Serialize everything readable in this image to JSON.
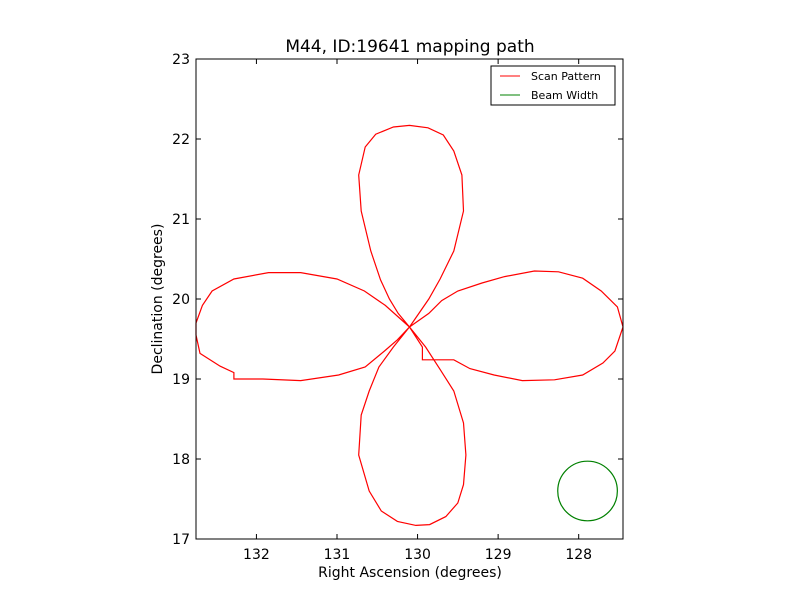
{
  "chart_data": {
    "type": "line",
    "title": "M44, ID:19641 mapping path",
    "xlabel": "Right Ascension (degrees)",
    "ylabel": "Declination (degrees)",
    "xlim": [
      132.75,
      127.45
    ],
    "ylim": [
      17,
      23
    ],
    "x_inverted": true,
    "xticks": [
      132,
      131,
      130,
      129,
      128
    ],
    "xtick_labels": [
      "132",
      "131",
      "130",
      "129",
      "128"
    ],
    "yticks": [
      17,
      18,
      19,
      20,
      21,
      22,
      23
    ],
    "ytick_labels": [
      "17",
      "18",
      "19",
      "20",
      "21",
      "22",
      "23"
    ],
    "grid": false,
    "legend_position": "top-right",
    "series": [
      {
        "name": "Scan Pattern",
        "color": "#ff0000",
        "points": [
          [
            130.1,
            19.65
          ],
          [
            130.24,
            19.82
          ],
          [
            130.35,
            20.0
          ],
          [
            130.46,
            20.24
          ],
          [
            130.58,
            20.6
          ],
          [
            130.7,
            21.1
          ],
          [
            130.73,
            21.55
          ],
          [
            130.65,
            21.9
          ],
          [
            130.52,
            22.06
          ],
          [
            130.3,
            22.15
          ],
          [
            130.1,
            22.17
          ],
          [
            129.87,
            22.14
          ],
          [
            129.68,
            22.05
          ],
          [
            129.55,
            21.85
          ],
          [
            129.45,
            21.55
          ],
          [
            129.43,
            21.1
          ],
          [
            129.55,
            20.6
          ],
          [
            129.72,
            20.25
          ],
          [
            129.86,
            20.0
          ],
          [
            130.1,
            19.65
          ],
          [
            129.86,
            19.82
          ],
          [
            129.7,
            19.98
          ],
          [
            129.5,
            20.1
          ],
          [
            129.2,
            20.2
          ],
          [
            128.92,
            20.28
          ],
          [
            128.55,
            20.35
          ],
          [
            128.25,
            20.34
          ],
          [
            127.95,
            20.26
          ],
          [
            127.72,
            20.1
          ],
          [
            127.52,
            19.9
          ],
          [
            127.45,
            19.65
          ],
          [
            127.55,
            19.35
          ],
          [
            127.7,
            19.2
          ],
          [
            127.95,
            19.05
          ],
          [
            128.3,
            18.99
          ],
          [
            128.7,
            18.98
          ],
          [
            129.05,
            19.05
          ],
          [
            129.35,
            19.13
          ],
          [
            129.55,
            19.24
          ],
          [
            129.94,
            19.24
          ],
          [
            129.94,
            19.4
          ],
          [
            130.1,
            19.65
          ],
          [
            130.25,
            19.49
          ],
          [
            130.41,
            19.35
          ],
          [
            130.65,
            19.15
          ],
          [
            130.98,
            19.05
          ],
          [
            131.45,
            18.98
          ],
          [
            131.92,
            19.0
          ],
          [
            132.28,
            19.0
          ],
          [
            132.28,
            19.08
          ],
          [
            132.45,
            19.16
          ],
          [
            132.7,
            19.32
          ],
          [
            132.75,
            19.55
          ],
          [
            132.75,
            19.7
          ],
          [
            132.67,
            19.92
          ],
          [
            132.55,
            20.1
          ],
          [
            132.28,
            20.25
          ],
          [
            131.85,
            20.33
          ],
          [
            131.45,
            20.33
          ],
          [
            131.0,
            20.25
          ],
          [
            130.66,
            20.1
          ],
          [
            130.4,
            19.92
          ],
          [
            130.1,
            19.65
          ],
          [
            130.3,
            19.4
          ],
          [
            130.48,
            19.15
          ],
          [
            130.6,
            18.85
          ],
          [
            130.7,
            18.55
          ],
          [
            130.73,
            18.05
          ],
          [
            130.6,
            17.6
          ],
          [
            130.45,
            17.35
          ],
          [
            130.25,
            17.22
          ],
          [
            130.02,
            17.17
          ],
          [
            129.85,
            17.18
          ],
          [
            129.65,
            17.28
          ],
          [
            129.5,
            17.45
          ],
          [
            129.43,
            17.68
          ],
          [
            129.4,
            18.05
          ],
          [
            129.43,
            18.45
          ],
          [
            129.55,
            18.85
          ],
          [
            129.72,
            19.12
          ],
          [
            129.9,
            19.4
          ],
          [
            130.1,
            19.65
          ]
        ]
      },
      {
        "name": "Beam Width",
        "color": "#008000",
        "shape": "circle",
        "center": [
          127.89,
          17.6
        ],
        "radius": 0.37
      }
    ]
  }
}
